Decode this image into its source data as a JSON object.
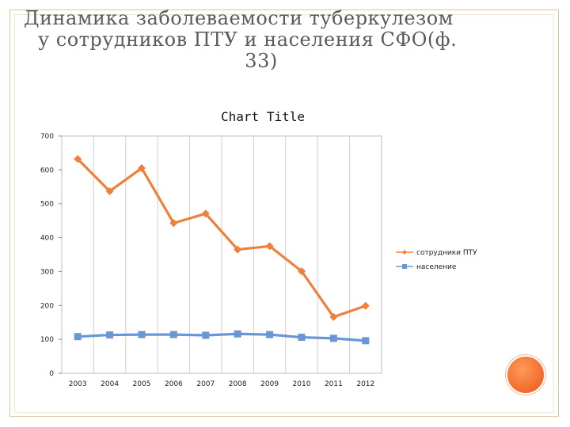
{
  "slide": {
    "title_line1": "Динамика заболеваемости туберкулезом",
    "title_line2": "у сотрудников ПТУ и населения   СФО(ф.",
    "title_line3": "33)"
  },
  "chart_data": {
    "type": "line",
    "title": "Chart Title",
    "categories": [
      "2003",
      "2004",
      "2005",
      "2006",
      "2007",
      "2008",
      "2009",
      "2010",
      "2011",
      "2012"
    ],
    "series": [
      {
        "name": "сотрудники ПТУ",
        "color": "#f07f3c",
        "marker": "diamond",
        "values": [
          632,
          537,
          605,
          443,
          471,
          365,
          375,
          301,
          166,
          199
        ]
      },
      {
        "name": "население",
        "color": "#6b96d6",
        "marker": "square",
        "values": [
          108,
          113,
          114,
          114,
          112,
          116,
          114,
          106,
          103,
          96
        ]
      }
    ],
    "ylim": [
      0,
      700
    ],
    "yticks": [
      0,
      100,
      200,
      300,
      400,
      500,
      600,
      700
    ],
    "grid": "vertical",
    "legend": "right"
  }
}
